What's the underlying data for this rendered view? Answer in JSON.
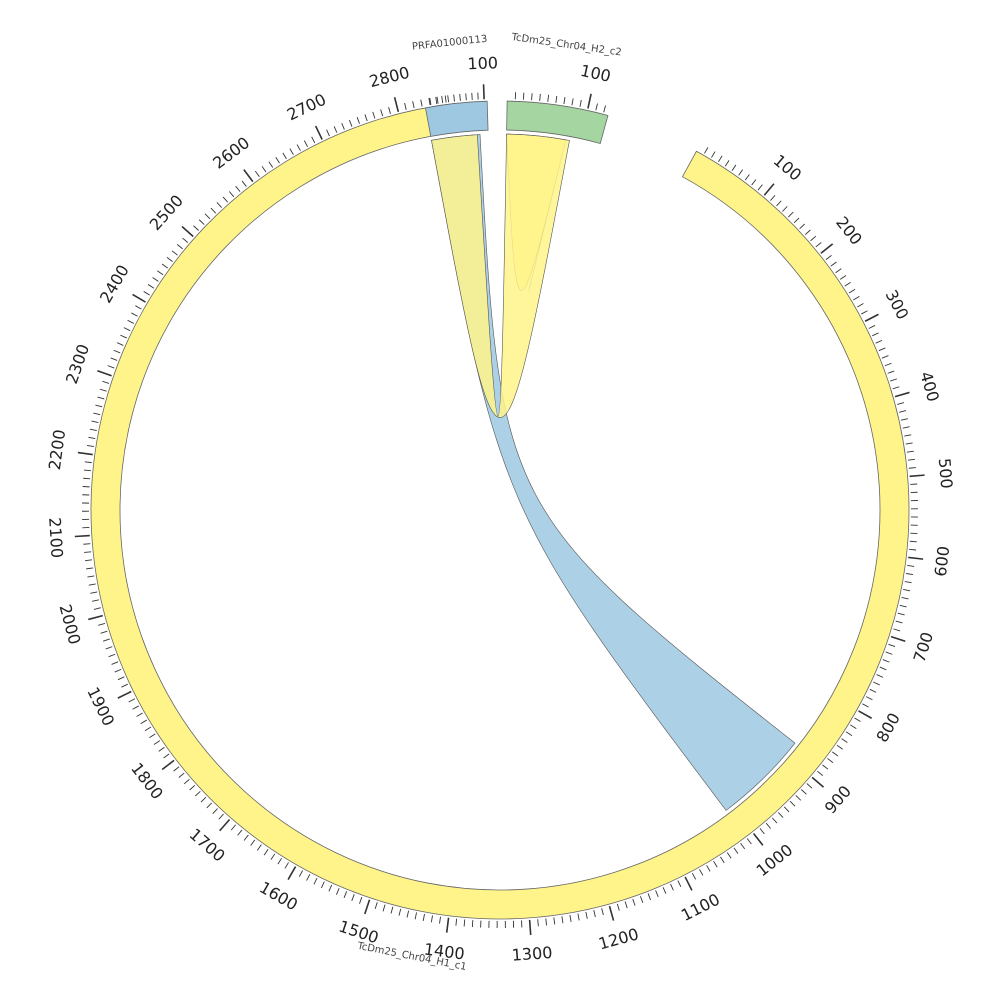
{
  "chart_data": {
    "type": "chord",
    "segments": [
      {
        "id": "c1",
        "label": "TcDm25_Chr04_H1_c1",
        "color": "#fff48a",
        "start_deg": 96.4,
        "end_deg": 421.3,
        "length": 2870,
        "tick_labels": [
          "100",
          "200",
          "300",
          "400",
          "500",
          "600",
          "700",
          "800",
          "900",
          "1000",
          "1100",
          "1200",
          "1300",
          "1400",
          "1500",
          "1600",
          "1700",
          "1800",
          "1900",
          "2000",
          "2100",
          "2200",
          "2300",
          "2400",
          "2500",
          "2600",
          "2700",
          "2800"
        ]
      },
      {
        "id": "c2",
        "label": "TcDm25_Chr04_H2_c2",
        "color": "#a5d6a2",
        "start_deg": 74.7,
        "end_deg": 89.0,
        "length": 126,
        "tick_labels": [
          "100"
        ]
      },
      {
        "id": "p",
        "label": "PRFA01000113",
        "color": "#9ec8e2",
        "start_deg": 91.8,
        "end_deg": 100.5,
        "length": 105,
        "tick_labels": [
          "100"
        ]
      }
    ],
    "links": [
      {
        "from": "c2",
        "from_range": [
          0,
          80
        ],
        "to": "c2",
        "to_range": [
          0,
          80
        ],
        "color": "#fff48a"
      },
      {
        "from": "p",
        "from_range": [
          0,
          90
        ],
        "to": "c1",
        "to_range": [
          880,
          1010
        ],
        "color": "#9ec8e2"
      },
      {
        "from": "p",
        "from_range": [
          0,
          85
        ],
        "to": "c2",
        "to_range": [
          0,
          85
        ],
        "color": "#fff48a"
      }
    ]
  }
}
